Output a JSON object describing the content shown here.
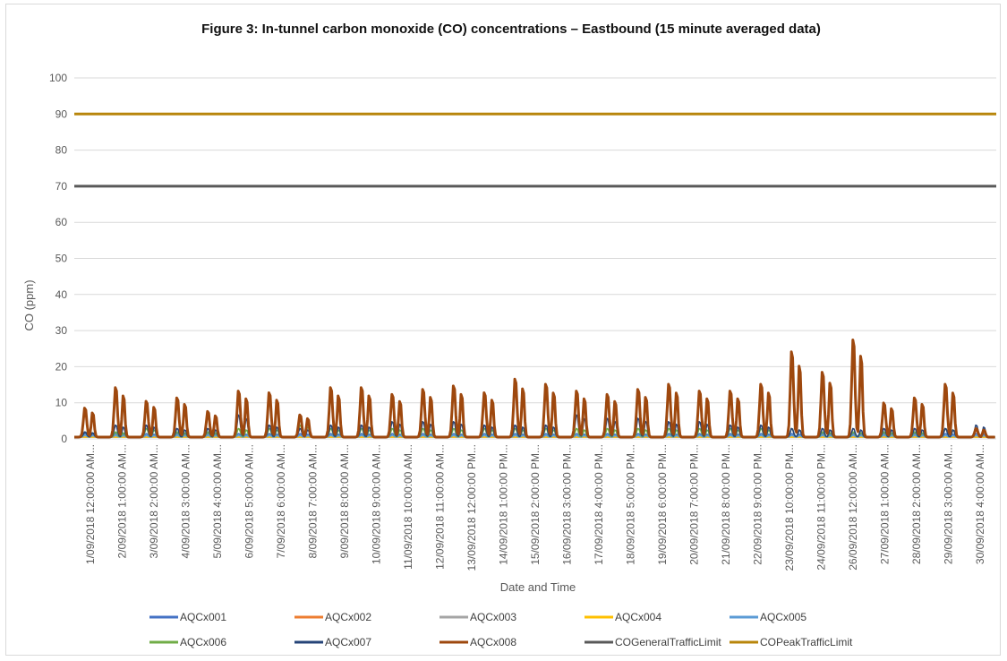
{
  "chart_data": {
    "type": "line",
    "title": "Figure 3: In-tunnel carbon monoxide (CO) concentrations – Eastbound (15 minute averaged data)",
    "xlabel": "Date and Time",
    "ylabel": "CO (ppm)",
    "ylim": [
      0,
      100
    ],
    "y_ticks": [
      0,
      10,
      20,
      30,
      40,
      50,
      60,
      70,
      80,
      90,
      100
    ],
    "grid": true,
    "legend_position": "bottom",
    "x_tick_labels": [
      "1/09/2018 12:00:00 AM...",
      "2/09/2018 1:00:00 AM...",
      "3/09/2018 2:00:00 AM...",
      "4/09/2018 3:00:00 AM...",
      "5/09/2018 4:00:00 AM...",
      "6/09/2018 5:00:00 AM...",
      "7/09/2018 6:00:00 AM...",
      "8/09/2018 7:00:00 AM...",
      "9/09/2018 8:00:00 AM...",
      "10/09/2018 9:00:00 AM...",
      "11/09/2018 10:00:00 AM...",
      "12/09/2018 11:00:00 AM...",
      "13/09/2018 12:00:00 PM...",
      "14/09/2018 1:00:00 PM...",
      "15/09/2018 2:00:00 PM...",
      "16/09/2018 3:00:00 PM...",
      "17/09/2018 4:00:00 PM...",
      "18/09/2018 5:00:00 PM...",
      "19/09/2018 6:00:00 PM...",
      "20/09/2018 7:00:00 PM...",
      "21/09/2018 8:00:00 PM...",
      "22/09/2018 9:00:00 PM...",
      "23/09/2018 10:00:00 PM...",
      "24/09/2018 11:00:00 PM...",
      "26/09/2018 12:00:00 AM...",
      "27/09/2018 1:00:00 AM...",
      "28/09/2018 2:00:00 AM...",
      "29/09/2018 3:00:00 AM...",
      "30/09/2018 4:00:00 AM..."
    ],
    "x_range_days": [
      1,
      31
    ],
    "series": [
      {
        "name": "AQCx001",
        "color": "#4472c4",
        "daily_peaks": [
          1.5,
          1.5,
          1.5,
          1.5,
          1.5,
          1.5,
          1.5,
          1.5,
          1.5,
          1.5,
          1.5,
          1.5,
          1.5,
          1.5,
          1.5,
          1.5,
          1.5,
          1.5,
          1.5,
          1.5,
          1.5,
          1.5,
          1.5,
          1.5,
          1.5,
          1.5,
          1.5,
          1.5,
          1.5,
          1.5
        ]
      },
      {
        "name": "AQCx002",
        "color": "#ed7d31",
        "daily_peaks": [
          0.5,
          0.5,
          0.5,
          0.5,
          0.5,
          0.5,
          0.5,
          0.5,
          0.5,
          0.5,
          0.5,
          0.5,
          0.5,
          0.5,
          0.5,
          0.5,
          0.5,
          0.5,
          0.5,
          0.5,
          0.5,
          0.5,
          0.5,
          0.5,
          0.5,
          0.5,
          0.5,
          0.5,
          0.5,
          0.5
        ]
      },
      {
        "name": "AQCx003",
        "color": "#a5a5a5",
        "daily_peaks": [
          0.5,
          0.5,
          0.5,
          0.5,
          0.5,
          0.5,
          0.5,
          0.5,
          0.5,
          0.5,
          0.5,
          0.5,
          0.5,
          0.5,
          0.5,
          0.5,
          0.5,
          0.5,
          0.5,
          0.5,
          0.5,
          0.5,
          0.5,
          0.5,
          0.5,
          0.5,
          0.5,
          0.5,
          0.5,
          0.5
        ]
      },
      {
        "name": "AQCx004",
        "color": "#ffc000",
        "daily_peaks": [
          0.5,
          0.5,
          0.5,
          0.5,
          0.5,
          0.5,
          0.5,
          0.5,
          0.5,
          0.5,
          0.5,
          0.5,
          0.5,
          0.5,
          0.5,
          0.5,
          0.5,
          0.5,
          0.5,
          0.5,
          0.5,
          0.5,
          0.5,
          0.5,
          0.5,
          0.5,
          0.5,
          0.5,
          0.5,
          0.5
        ]
      },
      {
        "name": "AQCx005",
        "color": "#5b9bd5",
        "daily_peaks": [
          1,
          1,
          1,
          1,
          1,
          1,
          1,
          1,
          1,
          1,
          1,
          1,
          1,
          1,
          1,
          1,
          1,
          1,
          1,
          1,
          1,
          1,
          1,
          1,
          1,
          1,
          1,
          1,
          1,
          1
        ]
      },
      {
        "name": "AQCx006",
        "color": "#70ad47",
        "daily_peaks": [
          2,
          2,
          3,
          2,
          2,
          3,
          3,
          4,
          3,
          3,
          3,
          3,
          3,
          3,
          3,
          3,
          3,
          3,
          3,
          3,
          3,
          3,
          3,
          3,
          2,
          2,
          2,
          2,
          3,
          3
        ]
      },
      {
        "name": "AQCx007",
        "color": "#264478",
        "daily_peaks": [
          2,
          4,
          4,
          3,
          3,
          7,
          4,
          3,
          4,
          4,
          5,
          5,
          5,
          4,
          4,
          4,
          7,
          6,
          6,
          5,
          5,
          4,
          4,
          3,
          3,
          3,
          3,
          3,
          3,
          4
        ]
      },
      {
        "name": "AQCx008",
        "color": "#9e480e",
        "daily_peaks": [
          9,
          15,
          11,
          12,
          8,
          14,
          13.5,
          7,
          15,
          15,
          13,
          14.5,
          15.5,
          13.5,
          17.5,
          16,
          14,
          13,
          14.5,
          16,
          14,
          14,
          16,
          25.5,
          19.5,
          29,
          10.5,
          12,
          16,
          3
        ]
      },
      {
        "name": "COGeneralTrafficLimit",
        "color": "#595959",
        "constant": 70
      },
      {
        "name": "COPeakTrafficLimit",
        "color": "#b8860b",
        "constant": 90
      }
    ]
  }
}
